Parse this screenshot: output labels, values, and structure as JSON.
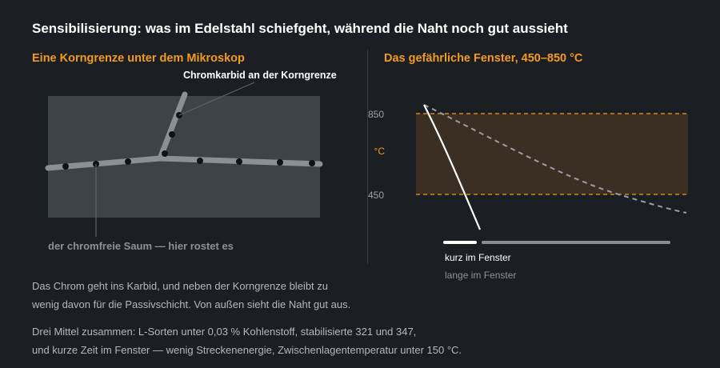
{
  "title": "Sensibilisierung: was im Edelstahl schiefgeht, während die Naht noch gut aussieht",
  "left_panel": {
    "heading": "Eine Korngrenze unter dem Mikroskop",
    "label_carbide": "Chromkarbid an der Korngrenze",
    "label_zone": "der chromfreie Saum — hier rostet es"
  },
  "right_panel": {
    "heading": "Das gefährliche Fenster, 450–850 °C",
    "axis_unit": "°C",
    "tick_high": "850",
    "tick_low": "450",
    "legend_short": "kurz im Fenster",
    "legend_long": "lange im Fenster"
  },
  "chart_data": {
    "type": "line",
    "xlabel": "",
    "ylabel": "°C",
    "y_ticks": [
      850,
      450
    ],
    "band": {
      "from": 450,
      "to": 850
    },
    "series": [
      {
        "name": "kurz im Fenster",
        "style": "solid",
        "color": "#ffffff"
      },
      {
        "name": "lange im Fenster",
        "style": "dashed",
        "color": "#9a9ea4"
      }
    ]
  },
  "text": {
    "para1_line1": "Das Chrom geht ins Karbid, und neben der Korngrenze bleibt zu",
    "para1_line2": "wenig davon für die Passivschicht. Von außen sieht die Naht gut aus.",
    "para2_line1": "Drei Mittel zusammen: L-Sorten unter 0,03 % Kohlenstoff, stabilisierte 321 und 347,",
    "para2_line2": "und kurze Zeit im Fenster — wenig Streckenenergie, Zwischenlagentemperatur unter 150 °C."
  },
  "colors": {
    "accent": "#f29b1d",
    "background": "#1b1e22",
    "panel": "#3e434a",
    "band_fill": "#3a2f22"
  }
}
